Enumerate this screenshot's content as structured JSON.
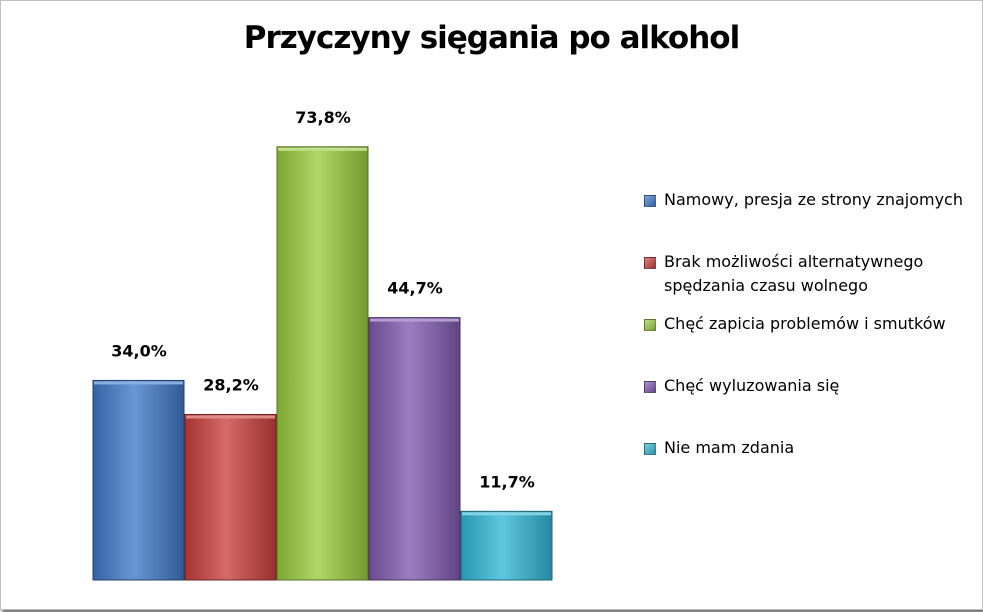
{
  "chart_data": {
    "type": "bar",
    "title": "Przyczyny sięgania po alkohol",
    "categories": [
      "Namowy, presja ze strony znajomych",
      "Brak możliwości alternatywnego spędzania czasu wolnego",
      "Chęć zapicia problemów i smutków",
      "Chęć wyluzowania się",
      "Nie mam zdania"
    ],
    "values": [
      34.0,
      28.2,
      73.8,
      44.7,
      11.7
    ],
    "data_labels": [
      "34,0%",
      "28,2%",
      "73,8%",
      "44,7%",
      "11,7%"
    ],
    "unit": "%",
    "ylim": [
      0,
      100
    ],
    "colors": [
      "#3f78c8",
      "#c9403d",
      "#9acc3e",
      "#7f5ab0",
      "#32b7d6"
    ],
    "grid": false,
    "legend_position": "right"
  }
}
